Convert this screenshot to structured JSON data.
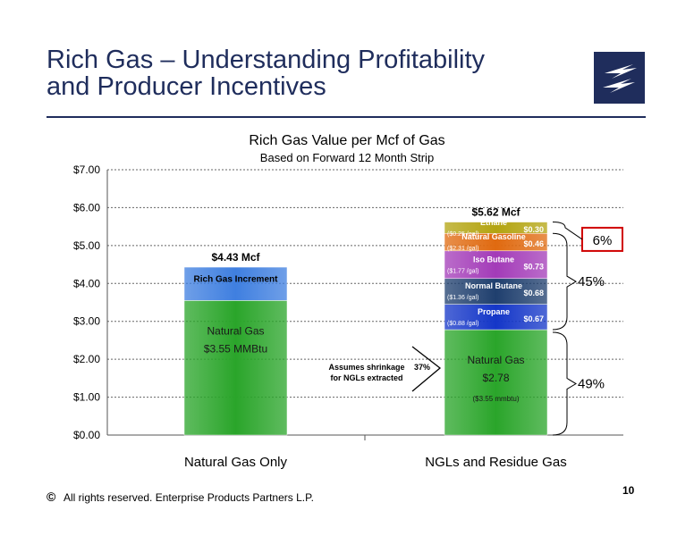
{
  "slide": {
    "title_line1": "Rich Gas – Understanding Profitability",
    "title_line2": "and Producer Incentives",
    "footer_symbol": "©",
    "footer": "All rights reserved. Enterprise Products Partners L.P.",
    "page_number": "10",
    "brand_color": "#1f2d5c",
    "logo_icon": "lightning-bolt-logo"
  },
  "chart_data": {
    "type": "bar",
    "stacked": true,
    "title": "Rich Gas Value per Mcf of Gas",
    "subtitle": "Based on Forward 12 Month Strip",
    "categories": [
      "Natural Gas Only",
      "NGLs and Residue Gas"
    ],
    "ylim": [
      0,
      7
    ],
    "yticks": [
      "$0.00",
      "$1.00",
      "$2.00",
      "$3.00",
      "$4.00",
      "$5.00",
      "$6.00",
      "$7.00"
    ],
    "grid": true,
    "series": [
      {
        "name": "Natural Gas",
        "values": [
          3.55,
          2.78
        ],
        "color": "#2aa52a",
        "labels": [
          "Natural Gas\n$3.55  MMBtu",
          "Natural Gas\n$2.78"
        ],
        "sublabels": [
          "",
          "($3.55 mmbtu)"
        ]
      },
      {
        "name": "Rich Gas Increment",
        "values": [
          0.88,
          0
        ],
        "color": "#3f7fe0"
      },
      {
        "name": "Propane",
        "values": [
          0,
          0.67
        ],
        "color": "#1436c8",
        "value_label": "$0.67",
        "price": "($0.88 /gal)"
      },
      {
        "name": "Normal Butane",
        "values": [
          0,
          0.68
        ],
        "color": "#1f3f6e",
        "value_label": "$0.68",
        "price": "($1.36 /gal)"
      },
      {
        "name": "Iso Butane",
        "values": [
          0,
          0.73
        ],
        "color": "#a33bb8",
        "value_label": "$0.73",
        "price": "($1.77 /gal)"
      },
      {
        "name": "Natural Gasoline",
        "values": [
          0,
          0.46
        ],
        "color": "#e06a10",
        "value_label": "$0.46",
        "price": "($2.31 /gal)"
      },
      {
        "name": "Ethane",
        "values": [
          0,
          0.3
        ],
        "color": "#b3a410",
        "value_label": "$0.30",
        "price": "($0.25 /gal)"
      }
    ],
    "totals": [
      "$4.43  Mcf",
      "$5.62  Mcf"
    ],
    "annotations": {
      "shrinkage_line1": "Assumes  shrinkage",
      "shrinkage_line2": "for NGLs extracted",
      "shrinkage_pct": "37%",
      "pct_ethane": "6%",
      "pct_ngls": "45%",
      "pct_gas": "49%"
    }
  }
}
